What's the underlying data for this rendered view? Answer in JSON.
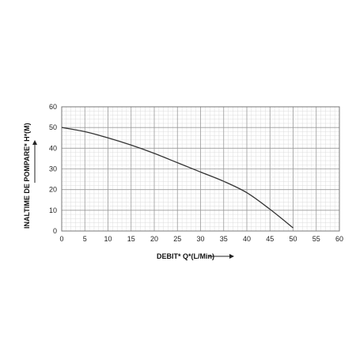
{
  "chart_data": {
    "type": "line",
    "xlabel": "DEBIT* Q*(L/Min)",
    "ylabel": "INALTIME DE POMPARE* H*(M)",
    "xlim": [
      0,
      60
    ],
    "ylim": [
      0,
      60
    ],
    "x_ticks": [
      "0",
      "5",
      "10",
      "15",
      "20",
      "25",
      "30",
      "35",
      "40",
      "45",
      "50",
      "55",
      "60"
    ],
    "y_ticks": [
      "0",
      "10",
      "20",
      "30",
      "40",
      "50",
      "60"
    ],
    "grid": true,
    "x": [
      0,
      5,
      10,
      15,
      20,
      25,
      30,
      35,
      40,
      45,
      50
    ],
    "y": [
      50,
      48,
      45,
      41.5,
      37.5,
      33,
      28.5,
      24,
      18.5,
      10.5,
      1.5
    ],
    "line_color": "#333333",
    "grid_major_color": "#9a9a9a",
    "grid_minor_color": "#dcdcdc"
  }
}
